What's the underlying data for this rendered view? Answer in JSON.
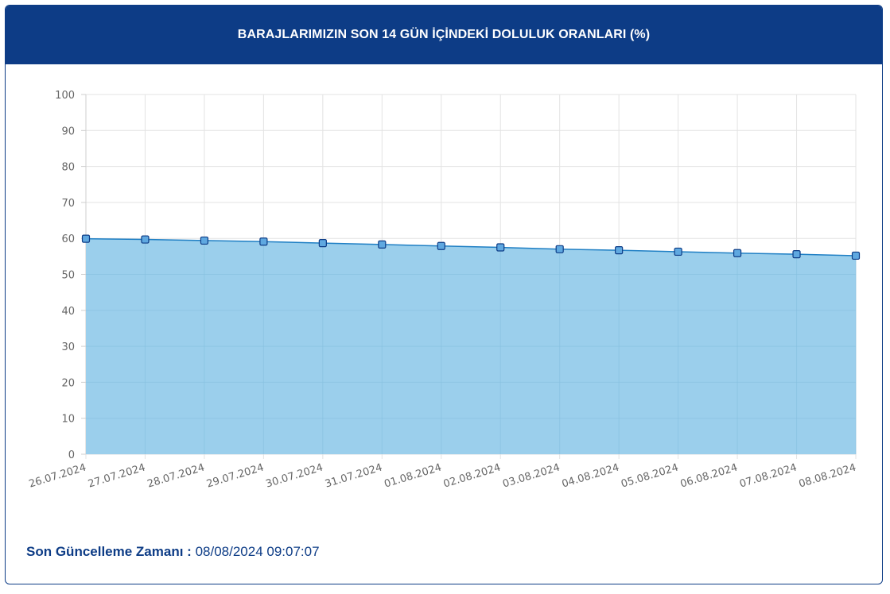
{
  "header": {
    "title": "BARAJLARIMIZIN SON 14 GÜN İÇİNDEKİ DOLULUK ORANLARI (%)"
  },
  "footer": {
    "label": "Son Güncelleme Zamanı",
    "separator": " : ",
    "value": "08/08/2024 09:07:07"
  },
  "colors": {
    "header_bg": "#0d3c86",
    "line": "#1f7fc4",
    "fill": "#9bcfec",
    "marker": "#5fa8e0"
  },
  "chart_data": {
    "type": "area",
    "categories": [
      "26.07.2024",
      "27.07.2024",
      "28.07.2024",
      "29.07.2024",
      "30.07.2024",
      "31.07.2024",
      "01.08.2024",
      "02.08.2024",
      "03.08.2024",
      "04.08.2024",
      "05.08.2024",
      "06.08.2024",
      "07.08.2024",
      "08.08.2024"
    ],
    "series": [
      {
        "values": [
          59.9,
          59.7,
          59.4,
          59.1,
          58.7,
          58.3,
          57.9,
          57.5,
          57.0,
          56.7,
          56.3,
          55.9,
          55.6,
          55.2
        ]
      }
    ],
    "ylim": [
      0,
      100
    ],
    "yticks": [
      0,
      10,
      20,
      30,
      40,
      50,
      60,
      70,
      80,
      90,
      100
    ],
    "grid": true,
    "legend": "none"
  }
}
